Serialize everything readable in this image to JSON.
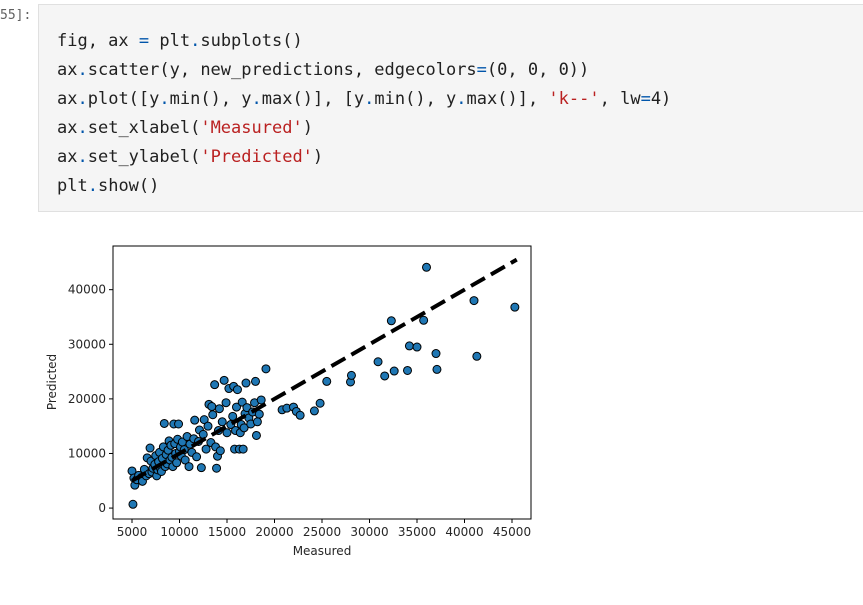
{
  "cell": {
    "prompt": "55]:",
    "code": [
      [
        {
          "t": "fig, ax "
        },
        {
          "t": "=",
          "c": "op"
        },
        {
          "t": " plt"
        },
        {
          "t": ".",
          "c": "op"
        },
        {
          "t": "subplots()"
        }
      ],
      [
        {
          "t": "ax"
        },
        {
          "t": ".",
          "c": "op"
        },
        {
          "t": "scatter(y, new_predictions, edgecolors"
        },
        {
          "t": "=",
          "c": "op"
        },
        {
          "t": "(0, 0, 0))"
        }
      ],
      [
        {
          "t": "ax"
        },
        {
          "t": ".",
          "c": "op"
        },
        {
          "t": "plot([y"
        },
        {
          "t": ".",
          "c": "op"
        },
        {
          "t": "min(), y"
        },
        {
          "t": ".",
          "c": "op"
        },
        {
          "t": "max()], [y"
        },
        {
          "t": ".",
          "c": "op"
        },
        {
          "t": "min(), y"
        },
        {
          "t": ".",
          "c": "op"
        },
        {
          "t": "max()], "
        },
        {
          "t": "'k--'",
          "c": "str"
        },
        {
          "t": ", lw"
        },
        {
          "t": "=",
          "c": "op"
        },
        {
          "t": "4)"
        }
      ],
      [
        {
          "t": "ax"
        },
        {
          "t": ".",
          "c": "op"
        },
        {
          "t": "set_xlabel("
        },
        {
          "t": "'Measured'",
          "c": "str"
        },
        {
          "t": ")"
        }
      ],
      [
        {
          "t": "ax"
        },
        {
          "t": ".",
          "c": "op"
        },
        {
          "t": "set_ylabel("
        },
        {
          "t": "'Predicted'",
          "c": "str"
        },
        {
          "t": ")"
        }
      ],
      [
        {
          "t": "plt"
        },
        {
          "t": ".",
          "c": "op"
        },
        {
          "t": "show()"
        }
      ]
    ]
  },
  "colors": {
    "point_fill": "#1f77b4",
    "point_edge": "#000000",
    "line": "#000000",
    "code_operator": "#0055aa",
    "code_string": "#ba2121"
  },
  "chart_data": {
    "type": "scatter",
    "xlabel": "Measured",
    "ylabel": "Predicted",
    "xlim": [
      3000,
      47000
    ],
    "ylim": [
      -2000,
      48000
    ],
    "xticks": [
      5000,
      10000,
      15000,
      20000,
      25000,
      30000,
      35000,
      40000,
      45000
    ],
    "yticks": [
      0,
      10000,
      20000,
      30000,
      40000
    ],
    "reference_line": {
      "style": "k--",
      "points": [
        [
          5000,
          5000
        ],
        [
          45500,
          45500
        ]
      ]
    },
    "points": [
      [
        5000,
        6800
      ],
      [
        5100,
        700
      ],
      [
        5200,
        5500
      ],
      [
        5300,
        4200
      ],
      [
        5500,
        5200
      ],
      [
        5700,
        6000
      ],
      [
        6000,
        5600
      ],
      [
        6100,
        4900
      ],
      [
        6300,
        7100
      ],
      [
        6500,
        5900
      ],
      [
        6600,
        9200
      ],
      [
        6800,
        6300
      ],
      [
        6900,
        11000
      ],
      [
        7000,
        8600
      ],
      [
        7100,
        6600
      ],
      [
        7200,
        7300
      ],
      [
        7400,
        8000
      ],
      [
        7500,
        9600
      ],
      [
        7600,
        5900
      ],
      [
        7700,
        7000
      ],
      [
        7800,
        8500
      ],
      [
        7900,
        10200
      ],
      [
        8000,
        7300
      ],
      [
        8100,
        6700
      ],
      [
        8200,
        9100
      ],
      [
        8300,
        11200
      ],
      [
        8400,
        15500
      ],
      [
        8500,
        7600
      ],
      [
        8600,
        9800
      ],
      [
        8700,
        8100
      ],
      [
        8800,
        10600
      ],
      [
        8900,
        12300
      ],
      [
        9000,
        8800
      ],
      [
        9100,
        11500
      ],
      [
        9200,
        9300
      ],
      [
        9300,
        7600
      ],
      [
        9400,
        15400
      ],
      [
        9500,
        11800
      ],
      [
        9600,
        10000
      ],
      [
        9700,
        8300
      ],
      [
        9800,
        12600
      ],
      [
        9900,
        15400
      ],
      [
        10000,
        10400
      ],
      [
        10100,
        11200
      ],
      [
        10200,
        9500
      ],
      [
        10300,
        12100
      ],
      [
        10500,
        10700
      ],
      [
        10600,
        8800
      ],
      [
        10800,
        13100
      ],
      [
        11000,
        7600
      ],
      [
        11100,
        11700
      ],
      [
        11300,
        10200
      ],
      [
        11500,
        12700
      ],
      [
        11600,
        16100
      ],
      [
        11800,
        9400
      ],
      [
        12000,
        12200
      ],
      [
        12100,
        14300
      ],
      [
        12300,
        7400
      ],
      [
        12500,
        13500
      ],
      [
        12600,
        16200
      ],
      [
        12800,
        10800
      ],
      [
        13000,
        15000
      ],
      [
        13100,
        19000
      ],
      [
        13300,
        12000
      ],
      [
        13400,
        18600
      ],
      [
        13500,
        17100
      ],
      [
        13700,
        22600
      ],
      [
        13800,
        11200
      ],
      [
        13900,
        7300
      ],
      [
        14000,
        9500
      ],
      [
        14100,
        14200
      ],
      [
        14200,
        18200
      ],
      [
        14300,
        10500
      ],
      [
        14500,
        15800
      ],
      [
        14700,
        23400
      ],
      [
        14900,
        19300
      ],
      [
        15000,
        13800
      ],
      [
        15200,
        21900
      ],
      [
        15400,
        15300
      ],
      [
        15600,
        16800
      ],
      [
        15700,
        22300
      ],
      [
        15800,
        10800
      ],
      [
        15900,
        14200
      ],
      [
        16000,
        18500
      ],
      [
        16100,
        21700
      ],
      [
        16300,
        10800
      ],
      [
        16400,
        13800
      ],
      [
        16500,
        15300
      ],
      [
        16600,
        19400
      ],
      [
        16700,
        10800
      ],
      [
        16800,
        14700
      ],
      [
        16900,
        17300
      ],
      [
        17000,
        22900
      ],
      [
        17100,
        18400
      ],
      [
        17300,
        16500
      ],
      [
        17500,
        15400
      ],
      [
        17700,
        17600
      ],
      [
        17900,
        19300
      ],
      [
        18000,
        23200
      ],
      [
        18100,
        13300
      ],
      [
        18200,
        15800
      ],
      [
        18400,
        17200
      ],
      [
        18600,
        19800
      ],
      [
        19100,
        25500
      ],
      [
        20800,
        18000
      ],
      [
        21300,
        18300
      ],
      [
        22000,
        18500
      ],
      [
        22300,
        17700
      ],
      [
        22700,
        17000
      ],
      [
        24200,
        17800
      ],
      [
        24800,
        19200
      ],
      [
        25500,
        23200
      ],
      [
        28000,
        23100
      ],
      [
        28100,
        24300
      ],
      [
        30900,
        26800
      ],
      [
        31600,
        24200
      ],
      [
        32300,
        34300
      ],
      [
        32600,
        25100
      ],
      [
        34000,
        25200
      ],
      [
        34200,
        29700
      ],
      [
        35000,
        29500
      ],
      [
        35700,
        34400
      ],
      [
        36000,
        44100
      ],
      [
        37000,
        28300
      ],
      [
        37100,
        25400
      ],
      [
        41000,
        38000
      ],
      [
        41300,
        27800
      ],
      [
        45300,
        36800
      ]
    ]
  }
}
